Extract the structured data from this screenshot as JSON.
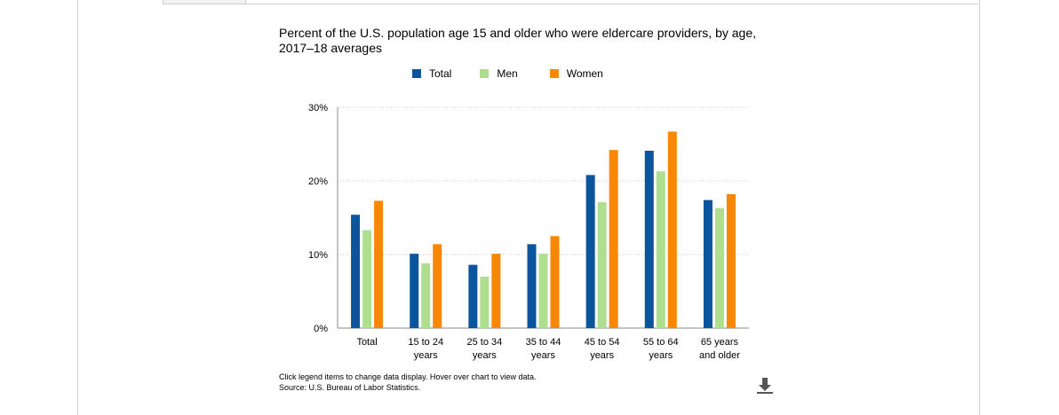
{
  "chart_data": {
    "type": "bar",
    "title": "Percent of the U.S. population age 15 and older who were eldercare providers, by age, 2017–18 averages",
    "categories": [
      [
        "Total"
      ],
      [
        "15 to 24",
        "years"
      ],
      [
        "25 to 34",
        "years"
      ],
      [
        "35 to 44",
        "years"
      ],
      [
        "45 to 54",
        "years"
      ],
      [
        "55 to 64",
        "years"
      ],
      [
        "65 years",
        "and older"
      ]
    ],
    "series": [
      {
        "name": "Total",
        "color": "#0b559f",
        "values": [
          15.4,
          10.1,
          8.6,
          11.4,
          20.8,
          24.1,
          17.4
        ]
      },
      {
        "name": "Men",
        "color": "#addf8f",
        "values": [
          13.3,
          8.8,
          7.0,
          10.1,
          17.1,
          21.3,
          16.3
        ]
      },
      {
        "name": "Women",
        "color": "#f98706",
        "values": [
          17.3,
          11.4,
          10.1,
          12.5,
          24.2,
          26.7,
          18.2
        ]
      }
    ],
    "ylim": [
      0,
      30
    ],
    "yticks": [
      "0%",
      "10%",
      "20%",
      "30%"
    ],
    "ytick_values": [
      0,
      10,
      20,
      30
    ],
    "grid": true,
    "legend_position": "top"
  },
  "footer": {
    "note": "Click legend items to change data display. Hover over chart to view data.",
    "source": "Source: U.S. Bureau of Labor Statistics."
  },
  "icons": {
    "download": "download-icon"
  }
}
